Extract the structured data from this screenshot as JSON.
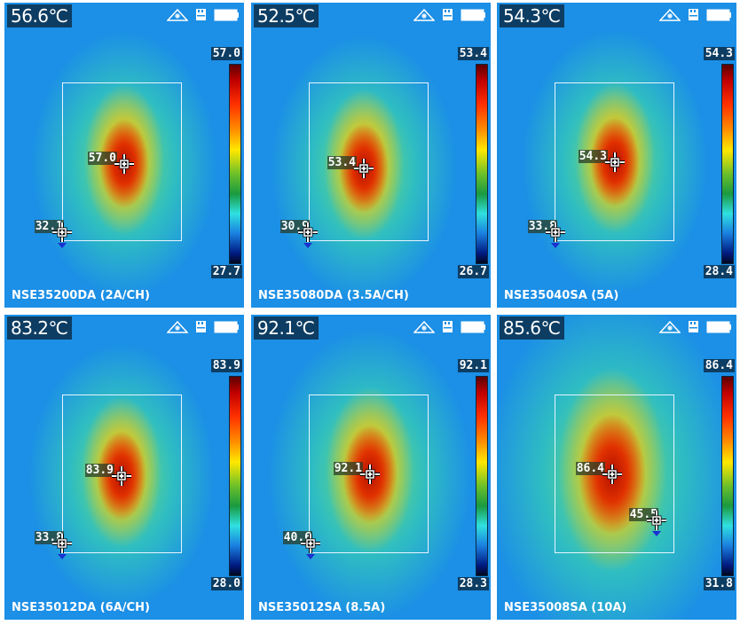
{
  "panels": [
    {
      "temp": "56.6℃",
      "scale_max": "57.0",
      "scale_min": "27.7",
      "max_marker": "57.0",
      "min_marker": "32.1",
      "title": "NSE35200DA (2A/CH)"
    },
    {
      "temp": "52.5℃",
      "scale_max": "53.4",
      "scale_min": "26.7",
      "max_marker": "53.4",
      "min_marker": "30.9",
      "title": "NSE35080DA (3.5A/CH)"
    },
    {
      "temp": "54.3℃",
      "scale_max": "54.3",
      "scale_min": "28.4",
      "max_marker": "54.3",
      "min_marker": "33.8",
      "title": "NSE35040SA (5A)"
    },
    {
      "temp": "83.2℃",
      "scale_max": "83.9",
      "scale_min": "28.0",
      "max_marker": "83.9",
      "min_marker": "33.8",
      "title": "NSE35012DA (6A/CH)"
    },
    {
      "temp": "92.1℃",
      "scale_max": "92.1",
      "scale_min": "28.3",
      "max_marker": "92.1",
      "min_marker": "40.6",
      "title": "NSE35012SA (8.5A)"
    },
    {
      "temp": "85.6℃",
      "scale_max": "86.4",
      "scale_min": "31.8",
      "max_marker": "86.4",
      "min_marker": "45.5",
      "title": "NSE35008SA (10A)"
    }
  ],
  "icons": [
    "laser-icon",
    "sd-card-icon",
    "battery-icon"
  ],
  "colors": {
    "background": "#1c8fe6",
    "hotspot": "#d02000",
    "label_bg": "#0d3d63"
  }
}
